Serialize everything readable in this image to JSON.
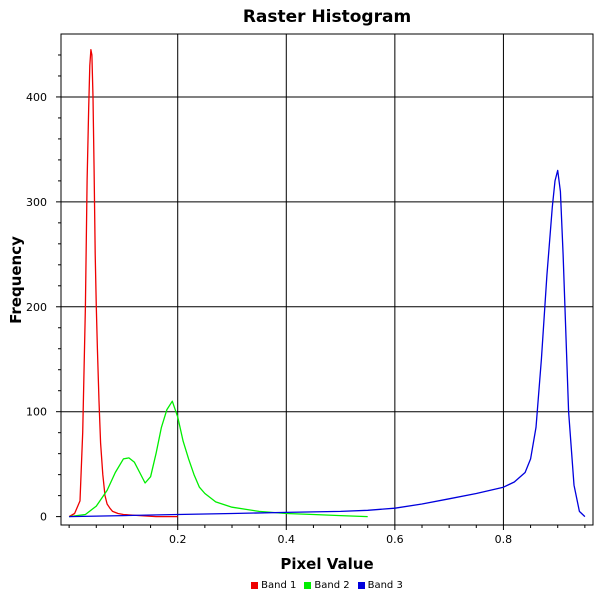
{
  "chart_data": {
    "type": "line",
    "title": "Raster Histogram",
    "xlabel": "Pixel Value",
    "ylabel": "Frequency",
    "xlim": [
      -0.015,
      0.965
    ],
    "ylim": [
      -8,
      460
    ],
    "grid": true,
    "legend_position": "bottom",
    "x_ticks": [
      {
        "value": 0.2,
        "label": "0.2"
      },
      {
        "value": 0.4,
        "label": "0.4"
      },
      {
        "value": 0.6,
        "label": "0.6"
      },
      {
        "value": 0.8,
        "label": "0.8"
      }
    ],
    "y_ticks": [
      {
        "value": 0,
        "label": "0"
      },
      {
        "value": 100,
        "label": "100"
      },
      {
        "value": 200,
        "label": "200"
      },
      {
        "value": 300,
        "label": "300"
      },
      {
        "value": 400,
        "label": "400"
      }
    ],
    "series": [
      {
        "name": "Band 1",
        "color": "#ee0000",
        "x": [
          0.0,
          0.01,
          0.02,
          0.025,
          0.03,
          0.033,
          0.036,
          0.038,
          0.04,
          0.042,
          0.044,
          0.046,
          0.048,
          0.05,
          0.052,
          0.055,
          0.058,
          0.062,
          0.066,
          0.07,
          0.075,
          0.08,
          0.09,
          0.1,
          0.13,
          0.16,
          0.2
        ],
        "y": [
          0,
          3,
          15,
          80,
          200,
          320,
          390,
          430,
          445,
          440,
          400,
          330,
          250,
          200,
          160,
          110,
          70,
          40,
          20,
          12,
          8,
          5,
          3,
          2,
          1,
          0,
          0
        ]
      },
      {
        "name": "Band 2",
        "color": "#00ee00",
        "x": [
          0.0,
          0.03,
          0.05,
          0.07,
          0.085,
          0.1,
          0.11,
          0.12,
          0.13,
          0.14,
          0.15,
          0.16,
          0.17,
          0.18,
          0.19,
          0.2,
          0.21,
          0.22,
          0.23,
          0.24,
          0.25,
          0.27,
          0.3,
          0.35,
          0.4,
          0.45,
          0.5,
          0.55
        ],
        "y": [
          0,
          2,
          10,
          25,
          42,
          55,
          56,
          52,
          42,
          32,
          38,
          60,
          85,
          102,
          110,
          95,
          72,
          55,
          40,
          28,
          22,
          14,
          9,
          5,
          3,
          2,
          1,
          0
        ]
      },
      {
        "name": "Band 3",
        "color": "#0000dd",
        "x": [
          0.0,
          0.1,
          0.2,
          0.3,
          0.4,
          0.5,
          0.55,
          0.6,
          0.65,
          0.7,
          0.75,
          0.8,
          0.82,
          0.84,
          0.85,
          0.86,
          0.87,
          0.88,
          0.89,
          0.895,
          0.9,
          0.905,
          0.91,
          0.92,
          0.93,
          0.94,
          0.95
        ],
        "y": [
          0,
          1,
          2,
          3,
          4,
          5,
          6,
          8,
          12,
          17,
          22,
          28,
          33,
          42,
          55,
          85,
          150,
          230,
          295,
          320,
          330,
          310,
          250,
          100,
          30,
          5,
          0
        ]
      }
    ]
  }
}
